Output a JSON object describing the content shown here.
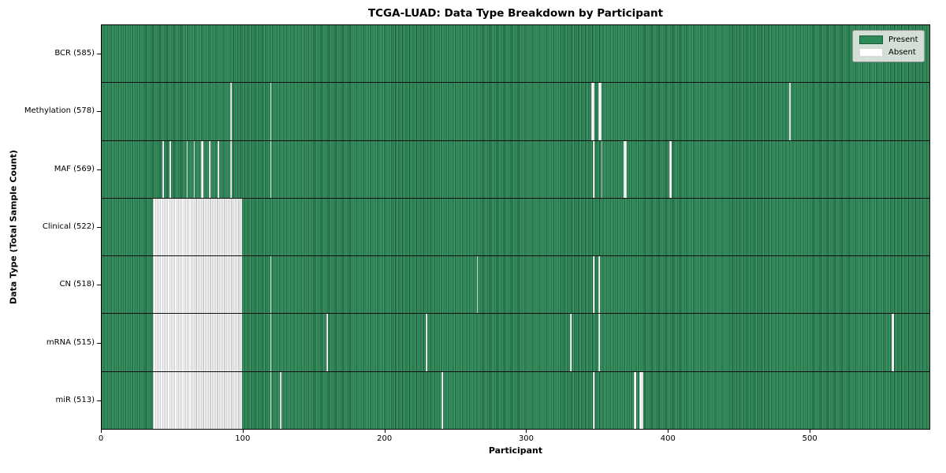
{
  "chart_data": {
    "type": "heatmap",
    "title": "TCGA-LUAD: Data Type Breakdown by Participant",
    "xlabel": "Participant",
    "ylabel": "Data Type (Total Sample Count)",
    "x_range": [
      0,
      585
    ],
    "x_ticks": [
      0,
      100,
      200,
      300,
      400,
      500
    ],
    "n_participants": 585,
    "grid": false,
    "legend_position": "upper-right",
    "legend": [
      {
        "label": "Present",
        "color": "#2e8b57"
      },
      {
        "label": "Absent",
        "color": "#ffffff"
      }
    ],
    "colors": {
      "present_fill": "#2e8b57",
      "present_edge": "#175432",
      "absent_fill": "#ffffff",
      "absent_edge": "#a2a2a2",
      "frame": "#000000",
      "legend_bg": "#e5e9e5"
    },
    "rows": [
      {
        "label": "BCR (585)",
        "data_type": "BCR",
        "total": 585,
        "absent_count": 0,
        "absent_runs": []
      },
      {
        "label": "Methylation (578)",
        "data_type": "Methylation",
        "total": 578,
        "absent_count": 7,
        "absent_runs": [
          [
            91,
            91
          ],
          [
            119,
            119
          ],
          [
            346,
            347
          ],
          [
            351,
            352
          ],
          [
            486,
            486
          ]
        ]
      },
      {
        "label": "MAF (569)",
        "data_type": "MAF",
        "total": 569,
        "absent_count": 16,
        "absent_runs": [
          [
            43,
            43
          ],
          [
            48,
            48
          ],
          [
            60,
            60
          ],
          [
            65,
            65
          ],
          [
            70,
            71
          ],
          [
            76,
            76
          ],
          [
            82,
            82
          ],
          [
            91,
            91
          ],
          [
            119,
            119
          ],
          [
            347,
            347
          ],
          [
            353,
            353
          ],
          [
            369,
            370
          ],
          [
            401,
            402
          ]
        ]
      },
      {
        "label": "Clinical (522)",
        "data_type": "Clinical",
        "total": 522,
        "absent_count": 63,
        "absent_runs": [
          [
            36,
            98
          ]
        ]
      },
      {
        "label": "CN (518)",
        "data_type": "CN",
        "total": 518,
        "absent_count": 67,
        "absent_runs": [
          [
            36,
            98
          ],
          [
            119,
            119
          ],
          [
            265,
            265
          ],
          [
            347,
            347
          ],
          [
            351,
            351
          ]
        ]
      },
      {
        "label": "mRNA (515)",
        "data_type": "mRNA",
        "total": 515,
        "absent_count": 70,
        "absent_runs": [
          [
            36,
            98
          ],
          [
            119,
            119
          ],
          [
            159,
            159
          ],
          [
            229,
            229
          ],
          [
            331,
            331
          ],
          [
            351,
            351
          ],
          [
            558,
            559
          ]
        ]
      },
      {
        "label": "miR (513)",
        "data_type": "miR",
        "total": 513,
        "absent_count": 72,
        "absent_runs": [
          [
            36,
            98
          ],
          [
            119,
            119
          ],
          [
            126,
            126
          ],
          [
            240,
            240
          ],
          [
            347,
            347
          ],
          [
            376,
            377
          ],
          [
            380,
            382
          ]
        ]
      }
    ]
  }
}
